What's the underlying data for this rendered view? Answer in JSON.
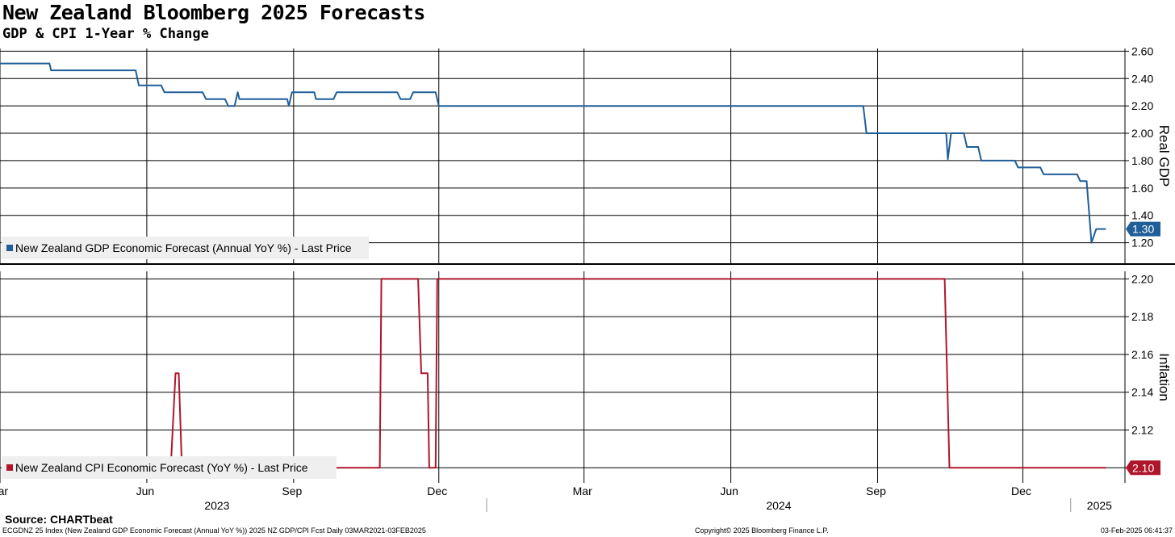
{
  "title": "New Zealand Bloomberg 2025 Forecasts",
  "subtitle": "GDP & CPI 1-Year % Change",
  "source": "Source: CHARTbeat",
  "footer": {
    "left": "ECGDNZ 25 Index (New Zealand GDP Economic Forecast (Annual YoY %)) 2025 NZ GDP/CPI Fcst  Daily 03MAR2021-03FEB2025",
    "center": "Copyright© 2025 Bloomberg Finance L.P.",
    "right": "03-Feb-2025 06:41:37"
  },
  "colors": {
    "gdp": "#1f5e99",
    "cpi": "#b0162b",
    "grid": "#000000"
  },
  "chart_data": [
    {
      "type": "line",
      "ylabel": "Real GDP",
      "ylim": [
        1.05,
        2.62
      ],
      "y_ticks": [
        1.2,
        1.4,
        1.6,
        1.8,
        2.0,
        2.2,
        2.4,
        2.6
      ],
      "x_range": [
        "2023-03-01",
        "2025-02-03"
      ],
      "x_ticks": [
        {
          "label": "Mar",
          "date": "2023-03-01"
        },
        {
          "label": "Jun",
          "date": "2023-06-01"
        },
        {
          "label": "Sep",
          "date": "2023-09-01"
        },
        {
          "label": "Dec",
          "date": "2023-12-01"
        },
        {
          "label": "Mar",
          "date": "2024-03-01"
        },
        {
          "label": "Jun",
          "date": "2024-06-01"
        },
        {
          "label": "Sep",
          "date": "2024-09-01"
        },
        {
          "label": "Dec",
          "date": "2024-12-01"
        }
      ],
      "years": [
        {
          "label": "2023",
          "date": "2023-07-15"
        },
        {
          "label": "2024",
          "date": "2024-07-01"
        },
        {
          "label": "2025",
          "date": "2025-01-18"
        }
      ],
      "year_dividers": [
        "2023-12-31",
        "2024-12-31"
      ],
      "grid": true,
      "legend_position": "bottom-left",
      "last_value": "1.30",
      "series": [
        {
          "name": "New Zealand GDP Economic Forecast (Annual YoY %) - Last Price",
          "points": [
            [
              "2023-03-01",
              2.51
            ],
            [
              "2023-04-01",
              2.51
            ],
            [
              "2023-04-02",
              2.46
            ],
            [
              "2023-05-25",
              2.46
            ],
            [
              "2023-05-27",
              2.35
            ],
            [
              "2023-06-10",
              2.35
            ],
            [
              "2023-06-12",
              2.3
            ],
            [
              "2023-07-06",
              2.3
            ],
            [
              "2023-07-08",
              2.25
            ],
            [
              "2023-07-20",
              2.25
            ],
            [
              "2023-07-22",
              2.2
            ],
            [
              "2023-07-26",
              2.2
            ],
            [
              "2023-07-28",
              2.3
            ],
            [
              "2023-07-29",
              2.25
            ],
            [
              "2023-08-28",
              2.25
            ],
            [
              "2023-08-29",
              2.2
            ],
            [
              "2023-08-31",
              2.3
            ],
            [
              "2023-09-14",
              2.3
            ],
            [
              "2023-09-15",
              2.25
            ],
            [
              "2023-09-26",
              2.25
            ],
            [
              "2023-09-28",
              2.3
            ],
            [
              "2023-11-05",
              2.3
            ],
            [
              "2023-11-07",
              2.25
            ],
            [
              "2023-11-13",
              2.25
            ],
            [
              "2023-11-15",
              2.3
            ],
            [
              "2023-11-29",
              2.3
            ],
            [
              "2023-12-01",
              2.2
            ],
            [
              "2024-08-23",
              2.2
            ],
            [
              "2024-08-25",
              2.0
            ],
            [
              "2024-10-14",
              2.0
            ],
            [
              "2024-10-15",
              1.81
            ],
            [
              "2024-10-17",
              2.0
            ],
            [
              "2024-10-25",
              2.0
            ],
            [
              "2024-10-27",
              1.9
            ],
            [
              "2024-11-03",
              1.9
            ],
            [
              "2024-11-05",
              1.8
            ],
            [
              "2024-11-26",
              1.8
            ],
            [
              "2024-11-28",
              1.75
            ],
            [
              "2024-12-12",
              1.75
            ],
            [
              "2024-12-14",
              1.7
            ],
            [
              "2025-01-04",
              1.7
            ],
            [
              "2025-01-06",
              1.65
            ],
            [
              "2025-01-10",
              1.65
            ],
            [
              "2025-01-13",
              1.2
            ],
            [
              "2025-01-16",
              1.3
            ],
            [
              "2025-01-22",
              1.3
            ]
          ]
        }
      ]
    },
    {
      "type": "line",
      "ylabel": "Inflation",
      "ylim": [
        2.092,
        2.204
      ],
      "y_ticks": [
        2.1,
        2.12,
        2.14,
        2.16,
        2.18,
        2.2
      ],
      "x_range": [
        "2023-03-01",
        "2025-02-03"
      ],
      "grid": true,
      "legend_position": "bottom-left",
      "last_value": "2.10",
      "series": [
        {
          "name": "New Zealand CPI Economic Forecast (YoY %) - Last Price",
          "points": [
            [
              "2023-04-01",
              2.1
            ],
            [
              "2023-06-16",
              2.1
            ],
            [
              "2023-06-19",
              2.15
            ],
            [
              "2023-06-21",
              2.15
            ],
            [
              "2023-06-23",
              2.1
            ],
            [
              "2023-10-25",
              2.1
            ],
            [
              "2023-10-26",
              2.2
            ],
            [
              "2023-11-18",
              2.2
            ],
            [
              "2023-11-20",
              2.15
            ],
            [
              "2023-11-24",
              2.15
            ],
            [
              "2023-11-25",
              2.1
            ],
            [
              "2023-11-29",
              2.1
            ],
            [
              "2023-11-30",
              2.2
            ],
            [
              "2024-10-13",
              2.2
            ],
            [
              "2024-10-16",
              2.1
            ],
            [
              "2025-01-22",
              2.1
            ]
          ]
        }
      ]
    }
  ]
}
